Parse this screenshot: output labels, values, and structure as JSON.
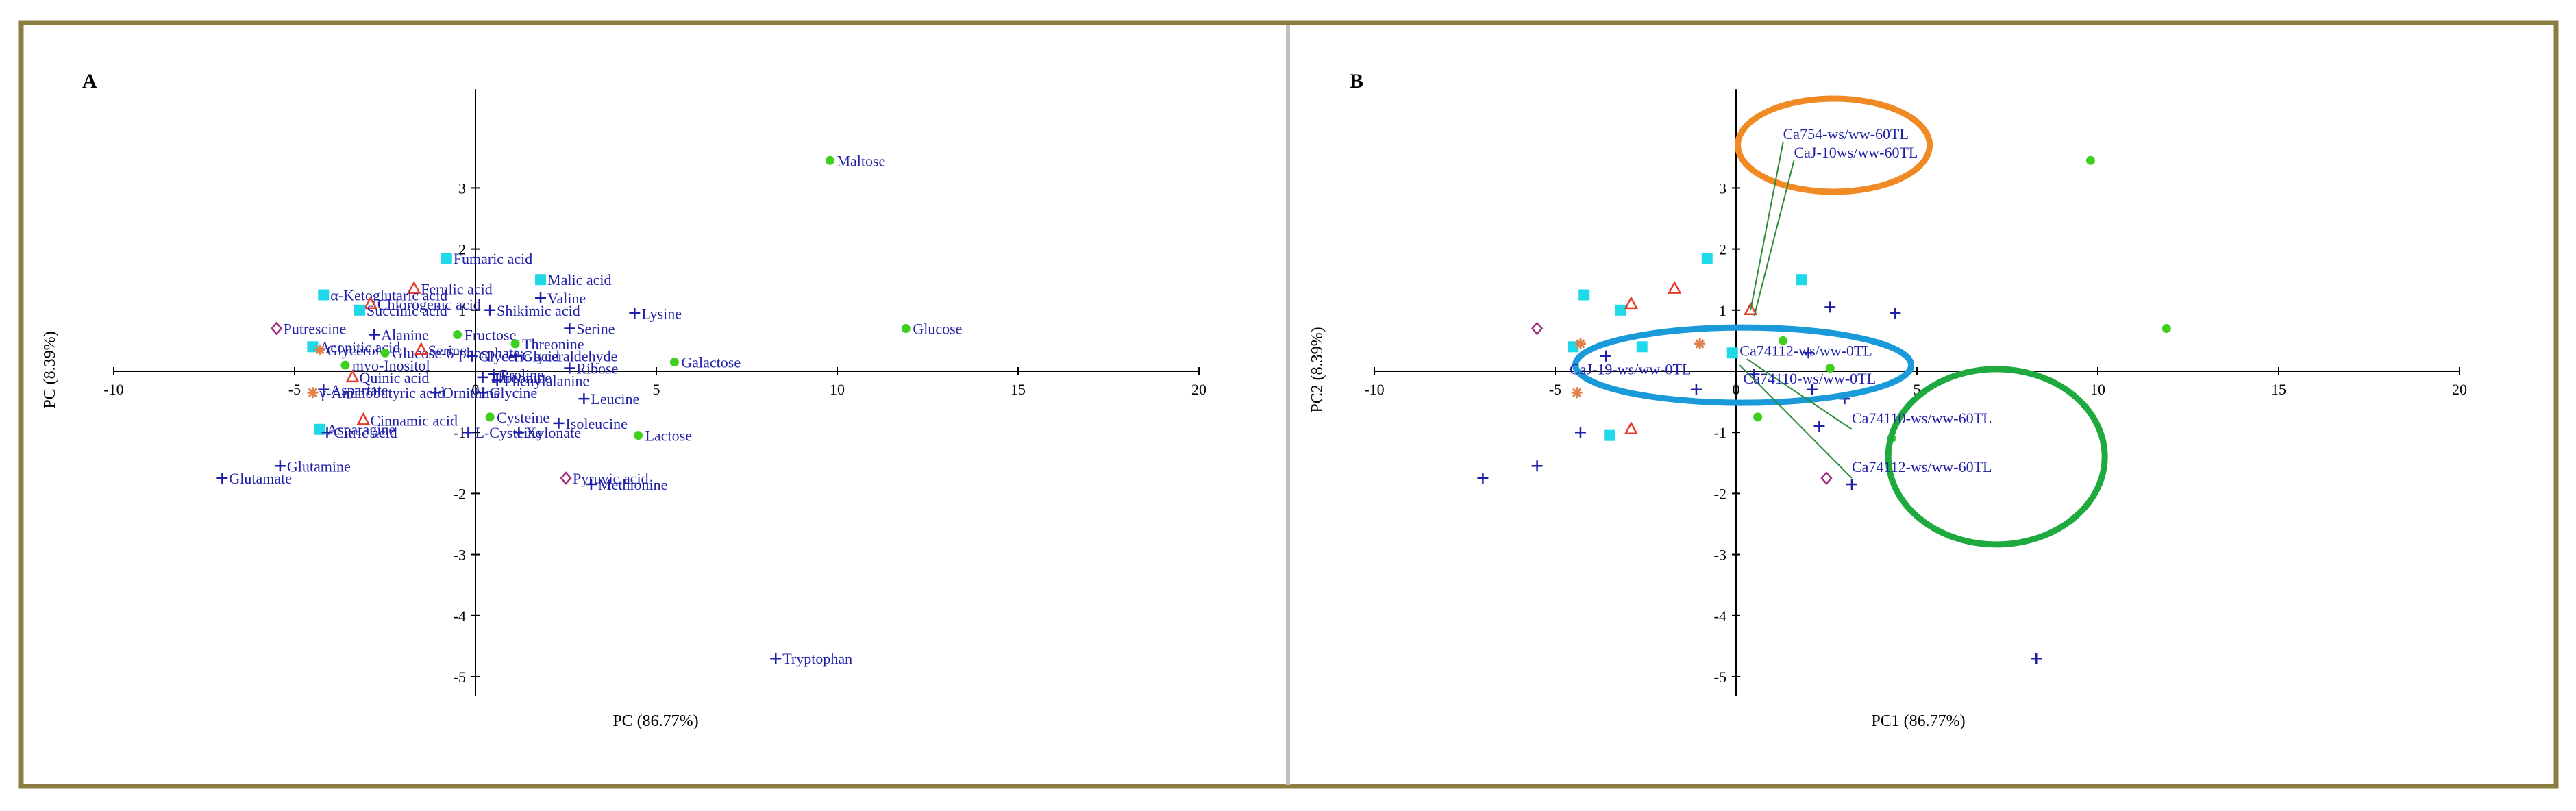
{
  "colors": {
    "frame": "#8b7d3f",
    "divider": "#bfbfbf",
    "axis": "#000000",
    "tick_text": "#000000",
    "label_text": "#1f1fa8",
    "cross": "#1f1fa8",
    "square": "#1fd8e8",
    "dot": "#3fd01f",
    "triangle": "#e83a2a",
    "diamond": "#a0307f",
    "star": "#e0814c",
    "orange_ellipse": "#f08a24",
    "blue_ellipse": "#1a9ad8",
    "green_ellipse": "#1faa3f",
    "leader": "#2e8b3a"
  },
  "chart_data": [
    {
      "panel_label": "A",
      "type": "scatter",
      "xlabel": "PC (86.77%)",
      "ylabel": "PC (8.39%)",
      "xlim": [
        -10,
        20
      ],
      "ylim": [
        -5,
        4
      ],
      "xticks": [
        -10,
        -5,
        0,
        5,
        10,
        15,
        20
      ],
      "yticks": [
        -5,
        -4,
        -3,
        -2,
        -1,
        1,
        2,
        3
      ],
      "tick_labels_x": [
        "-10",
        "-5",
        "0",
        "5",
        "10",
        "15",
        "20"
      ],
      "tick_labels_y": [
        "-5",
        "-4",
        "-3",
        "-2",
        "-1",
        "1",
        "2",
        "3"
      ],
      "points": [
        {
          "label": "Maltose",
          "x": 9.8,
          "y": 3.45,
          "marker": "dot"
        },
        {
          "label": "Glucose",
          "x": 11.9,
          "y": 0.7,
          "marker": "dot"
        },
        {
          "label": "Galactose",
          "x": 5.5,
          "y": 0.15,
          "marker": "dot"
        },
        {
          "label": "Lactose",
          "x": 4.5,
          "y": -1.05,
          "marker": "dot"
        },
        {
          "label": "Tryptophan",
          "x": 8.3,
          "y": -4.7,
          "marker": "cross"
        },
        {
          "label": "Fumaric acid",
          "x": -0.8,
          "y": 1.85,
          "marker": "square"
        },
        {
          "label": "Malic acid",
          "x": 1.8,
          "y": 1.5,
          "marker": "square"
        },
        {
          "label": "Valine",
          "x": 1.8,
          "y": 1.2,
          "marker": "cross"
        },
        {
          "label": "Lysine",
          "x": 4.4,
          "y": 0.95,
          "marker": "cross"
        },
        {
          "label": "Serine",
          "x": 2.6,
          "y": 0.7,
          "marker": "cross"
        },
        {
          "label": "Threonine",
          "x": 1.1,
          "y": 0.45,
          "marker": "dot"
        },
        {
          "label": "Shikimic acid",
          "x": 0.4,
          "y": 1.0,
          "marker": "cross"
        },
        {
          "label": "Ferulic acid",
          "x": -1.7,
          "y": 1.35,
          "marker": "triangle"
        },
        {
          "label": "Fructose",
          "x": -0.5,
          "y": 0.6,
          "marker": "dot"
        },
        {
          "label": "α-Ketoglutaric acid",
          "x": -4.2,
          "y": 1.25,
          "marker": "square"
        },
        {
          "label": "Chlorogenic acid",
          "x": -2.9,
          "y": 1.1,
          "marker": "triangle"
        },
        {
          "label": "Succinic acid",
          "x": -3.2,
          "y": 1.0,
          "marker": "square"
        },
        {
          "label": "Putrescine",
          "x": -5.5,
          "y": 0.7,
          "marker": "diamond"
        },
        {
          "label": "Alanine",
          "x": -2.8,
          "y": 0.6,
          "marker": "cross"
        },
        {
          "label": "Aconitic acid",
          "x": -4.5,
          "y": 0.4,
          "marker": "square"
        },
        {
          "label": "Glycerol",
          "x": -4.3,
          "y": 0.35,
          "marker": "star"
        },
        {
          "label": "Glucose-6-phosphate",
          "x": -2.5,
          "y": 0.3,
          "marker": "dot"
        },
        {
          "label": "Serine",
          "x": -1.5,
          "y": 0.35,
          "marker": "triangle"
        },
        {
          "label": "Glyceric acid",
          "x": -0.1,
          "y": 0.25,
          "marker": "cross"
        },
        {
          "label": "Glyceraldehyde",
          "x": 1.1,
          "y": 0.25,
          "marker": "cross"
        },
        {
          "label": "myo-Inositol",
          "x": -3.6,
          "y": 0.1,
          "marker": "dot"
        },
        {
          "label": "Ribose",
          "x": 2.6,
          "y": 0.05,
          "marker": "cross"
        },
        {
          "label": "Quinic acid",
          "x": -3.4,
          "y": -0.1,
          "marker": "triangle"
        },
        {
          "label": "Proline",
          "x": 0.5,
          "y": -0.05,
          "marker": "cross"
        },
        {
          "label": "Threonine",
          "x": 0.2,
          "y": -0.1,
          "marker": "cross"
        },
        {
          "label": "Phenylalanine",
          "x": 0.6,
          "y": -0.15,
          "marker": "cross"
        },
        {
          "label": "γ-Aminobutyric acid",
          "x": -4.5,
          "y": -0.35,
          "marker": "star"
        },
        {
          "label": "Aspartate",
          "x": -4.2,
          "y": -0.3,
          "marker": "cross"
        },
        {
          "label": "Ornithine",
          "x": -1.1,
          "y": -0.35,
          "marker": "cross"
        },
        {
          "label": "Glycine",
          "x": 0.2,
          "y": -0.35,
          "marker": "cross"
        },
        {
          "label": "Leucine",
          "x": 3.0,
          "y": -0.45,
          "marker": "cross"
        },
        {
          "label": "Isoleucine",
          "x": 2.3,
          "y": -0.85,
          "marker": "cross"
        },
        {
          "label": "Cysteine",
          "x": 0.4,
          "y": -0.75,
          "marker": "dot"
        },
        {
          "label": "Cinnamic acid",
          "x": -3.1,
          "y": -0.8,
          "marker": "triangle"
        },
        {
          "label": "Xylonate",
          "x": 1.2,
          "y": -1.0,
          "marker": "cross"
        },
        {
          "label": "L-Cysteine",
          "x": -0.2,
          "y": -1.0,
          "marker": "cross"
        },
        {
          "label": "Asparagine",
          "x": -4.3,
          "y": -0.95,
          "marker": "square"
        },
        {
          "label": "Citric acid",
          "x": -4.1,
          "y": -1.0,
          "marker": "cross"
        },
        {
          "label": "Glutamine",
          "x": -5.4,
          "y": -1.55,
          "marker": "cross"
        },
        {
          "label": "Glutamate",
          "x": -7.0,
          "y": -1.75,
          "marker": "cross"
        },
        {
          "label": "Pyruvic acid",
          "x": 2.5,
          "y": -1.75,
          "marker": "diamond"
        },
        {
          "label": "Methionine",
          "x": 3.2,
          "y": -1.85,
          "marker": "cross"
        }
      ]
    },
    {
      "panel_label": "B",
      "type": "scatter",
      "xlabel": "PC1 (86.77%)",
      "ylabel": "PC2 (8.39%)",
      "xlim": [
        -10,
        20
      ],
      "ylim": [
        -5,
        4
      ],
      "xticks": [
        -10,
        -5,
        0,
        5,
        10,
        15,
        20
      ],
      "yticks": [
        -5,
        -4,
        -3,
        -2,
        -1,
        1,
        2,
        3
      ],
      "tick_labels_x": [
        "-10",
        "-5",
        "0",
        "5",
        "10",
        "15",
        "20"
      ],
      "tick_labels_y": [
        "-5",
        "-4",
        "-3",
        "-2",
        "-1",
        "1",
        "2",
        "3"
      ],
      "points": [
        {
          "x": 9.8,
          "y": 3.45,
          "marker": "dot"
        },
        {
          "x": 11.9,
          "y": 0.7,
          "marker": "dot"
        },
        {
          "x": 8.3,
          "y": -4.7,
          "marker": "cross"
        },
        {
          "x": -0.8,
          "y": 1.85,
          "marker": "square"
        },
        {
          "x": 1.8,
          "y": 1.5,
          "marker": "square"
        },
        {
          "x": 4.4,
          "y": 0.95,
          "marker": "cross"
        },
        {
          "x": 2.6,
          "y": 1.05,
          "marker": "cross"
        },
        {
          "x": 0.4,
          "y": 1.0,
          "marker": "triangle"
        },
        {
          "x": -1.7,
          "y": 1.35,
          "marker": "triangle"
        },
        {
          "x": -4.2,
          "y": 1.25,
          "marker": "square"
        },
        {
          "x": -3.2,
          "y": 1.0,
          "marker": "square"
        },
        {
          "x": -2.9,
          "y": 1.1,
          "marker": "triangle"
        },
        {
          "x": -5.5,
          "y": 0.7,
          "marker": "diamond"
        },
        {
          "x": -4.5,
          "y": 0.4,
          "marker": "square"
        },
        {
          "x": -4.3,
          "y": 0.45,
          "marker": "star"
        },
        {
          "x": -3.6,
          "y": 0.25,
          "marker": "cross"
        },
        {
          "x": -2.6,
          "y": 0.4,
          "marker": "square"
        },
        {
          "x": 1.3,
          "y": 0.5,
          "marker": "dot"
        },
        {
          "x": -1.0,
          "y": 0.45,
          "marker": "star"
        },
        {
          "x": -0.1,
          "y": 0.3,
          "marker": "square"
        },
        {
          "x": 2.0,
          "y": 0.3,
          "marker": "cross"
        },
        {
          "x": 2.6,
          "y": 0.05,
          "marker": "dot"
        },
        {
          "x": 0.5,
          "y": -0.05,
          "marker": "cross"
        },
        {
          "x": -4.4,
          "y": -0.35,
          "marker": "star"
        },
        {
          "x": -1.1,
          "y": -0.3,
          "marker": "cross"
        },
        {
          "x": 2.1,
          "y": -0.3,
          "marker": "cross"
        },
        {
          "x": 3.0,
          "y": -0.45,
          "marker": "cross"
        },
        {
          "x": 0.6,
          "y": -0.75,
          "marker": "dot"
        },
        {
          "x": 2.3,
          "y": -0.9,
          "marker": "cross"
        },
        {
          "x": -4.3,
          "y": -1.0,
          "marker": "cross"
        },
        {
          "x": -3.5,
          "y": -1.05,
          "marker": "square"
        },
        {
          "x": -2.9,
          "y": -0.95,
          "marker": "triangle"
        },
        {
          "x": 4.3,
          "y": -1.1,
          "marker": "dot"
        },
        {
          "x": -5.5,
          "y": -1.55,
          "marker": "cross"
        },
        {
          "x": -7.0,
          "y": -1.75,
          "marker": "cross"
        },
        {
          "x": 2.5,
          "y": -1.75,
          "marker": "diamond"
        },
        {
          "x": 3.2,
          "y": -1.85,
          "marker": "cross"
        }
      ],
      "annotations": [
        {
          "label": "Ca754-ws/ww-60TL",
          "x": 1.3,
          "y": 3.8,
          "group": "orange"
        },
        {
          "label": "CaJ-10ws/ww-60TL",
          "x": 1.6,
          "y": 3.5,
          "group": "orange"
        },
        {
          "label": "Ca74112-ws/ww-0TL",
          "x": 0.1,
          "y": 0.25,
          "group": "blue"
        },
        {
          "label": "CaJ-19-ws/ww-0TL",
          "x": -4.6,
          "y": -0.05,
          "group": "blue"
        },
        {
          "label": "Ca74110-ws/ww-0TL",
          "x": 0.2,
          "y": -0.2,
          "group": "blue"
        },
        {
          "label": "Ca74110-ws/ww-60TL",
          "x": 3.2,
          "y": -0.85,
          "group": "green"
        },
        {
          "label": "Ca74112-ws/ww-60TL",
          "x": 3.2,
          "y": -1.65,
          "group": "green"
        }
      ]
    }
  ]
}
